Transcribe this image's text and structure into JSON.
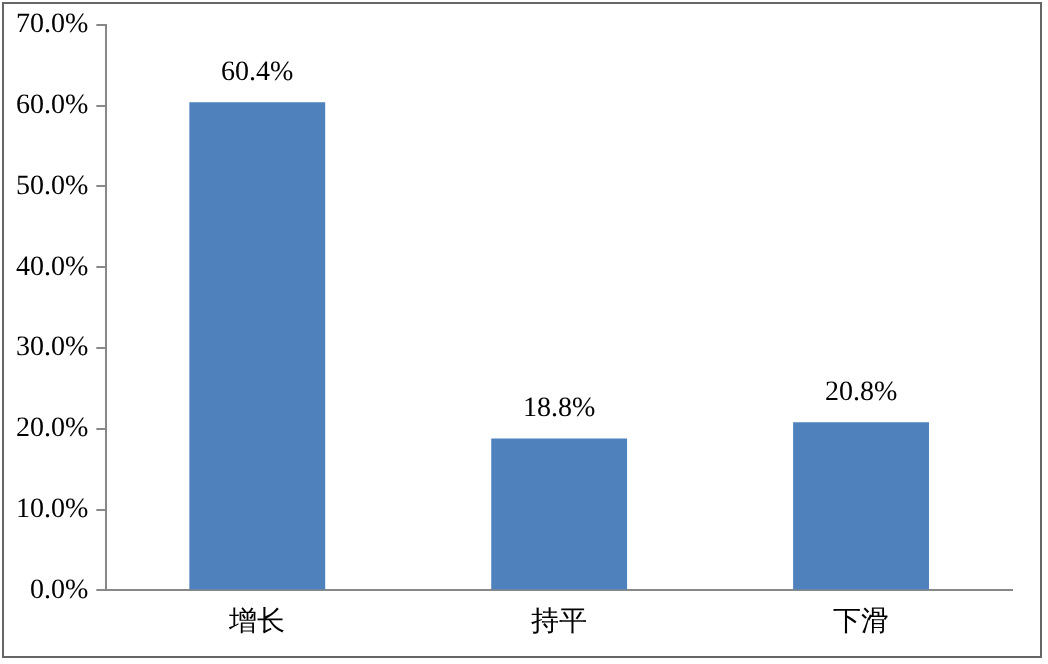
{
  "chart_data": {
    "type": "bar",
    "categories": [
      "增长",
      "持平",
      "下滑"
    ],
    "values": [
      60.4,
      18.8,
      20.8
    ],
    "color": "#4f81bd",
    "value_labels": [
      "60.4%",
      "18.8%",
      "20.8%"
    ],
    "ylim": [
      0,
      70
    ],
    "yticks": [
      {
        "value": 0,
        "label": "0.0%"
      },
      {
        "value": 10,
        "label": "10.0%"
      },
      {
        "value": 20,
        "label": "20.0%"
      },
      {
        "value": 30,
        "label": "30.0%"
      },
      {
        "value": 40,
        "label": "40.0%"
      },
      {
        "value": 50,
        "label": "50.0%"
      },
      {
        "value": 60,
        "label": "60.0%"
      },
      {
        "value": 70,
        "label": "70.0%"
      }
    ],
    "grid": false,
    "legend": false
  }
}
